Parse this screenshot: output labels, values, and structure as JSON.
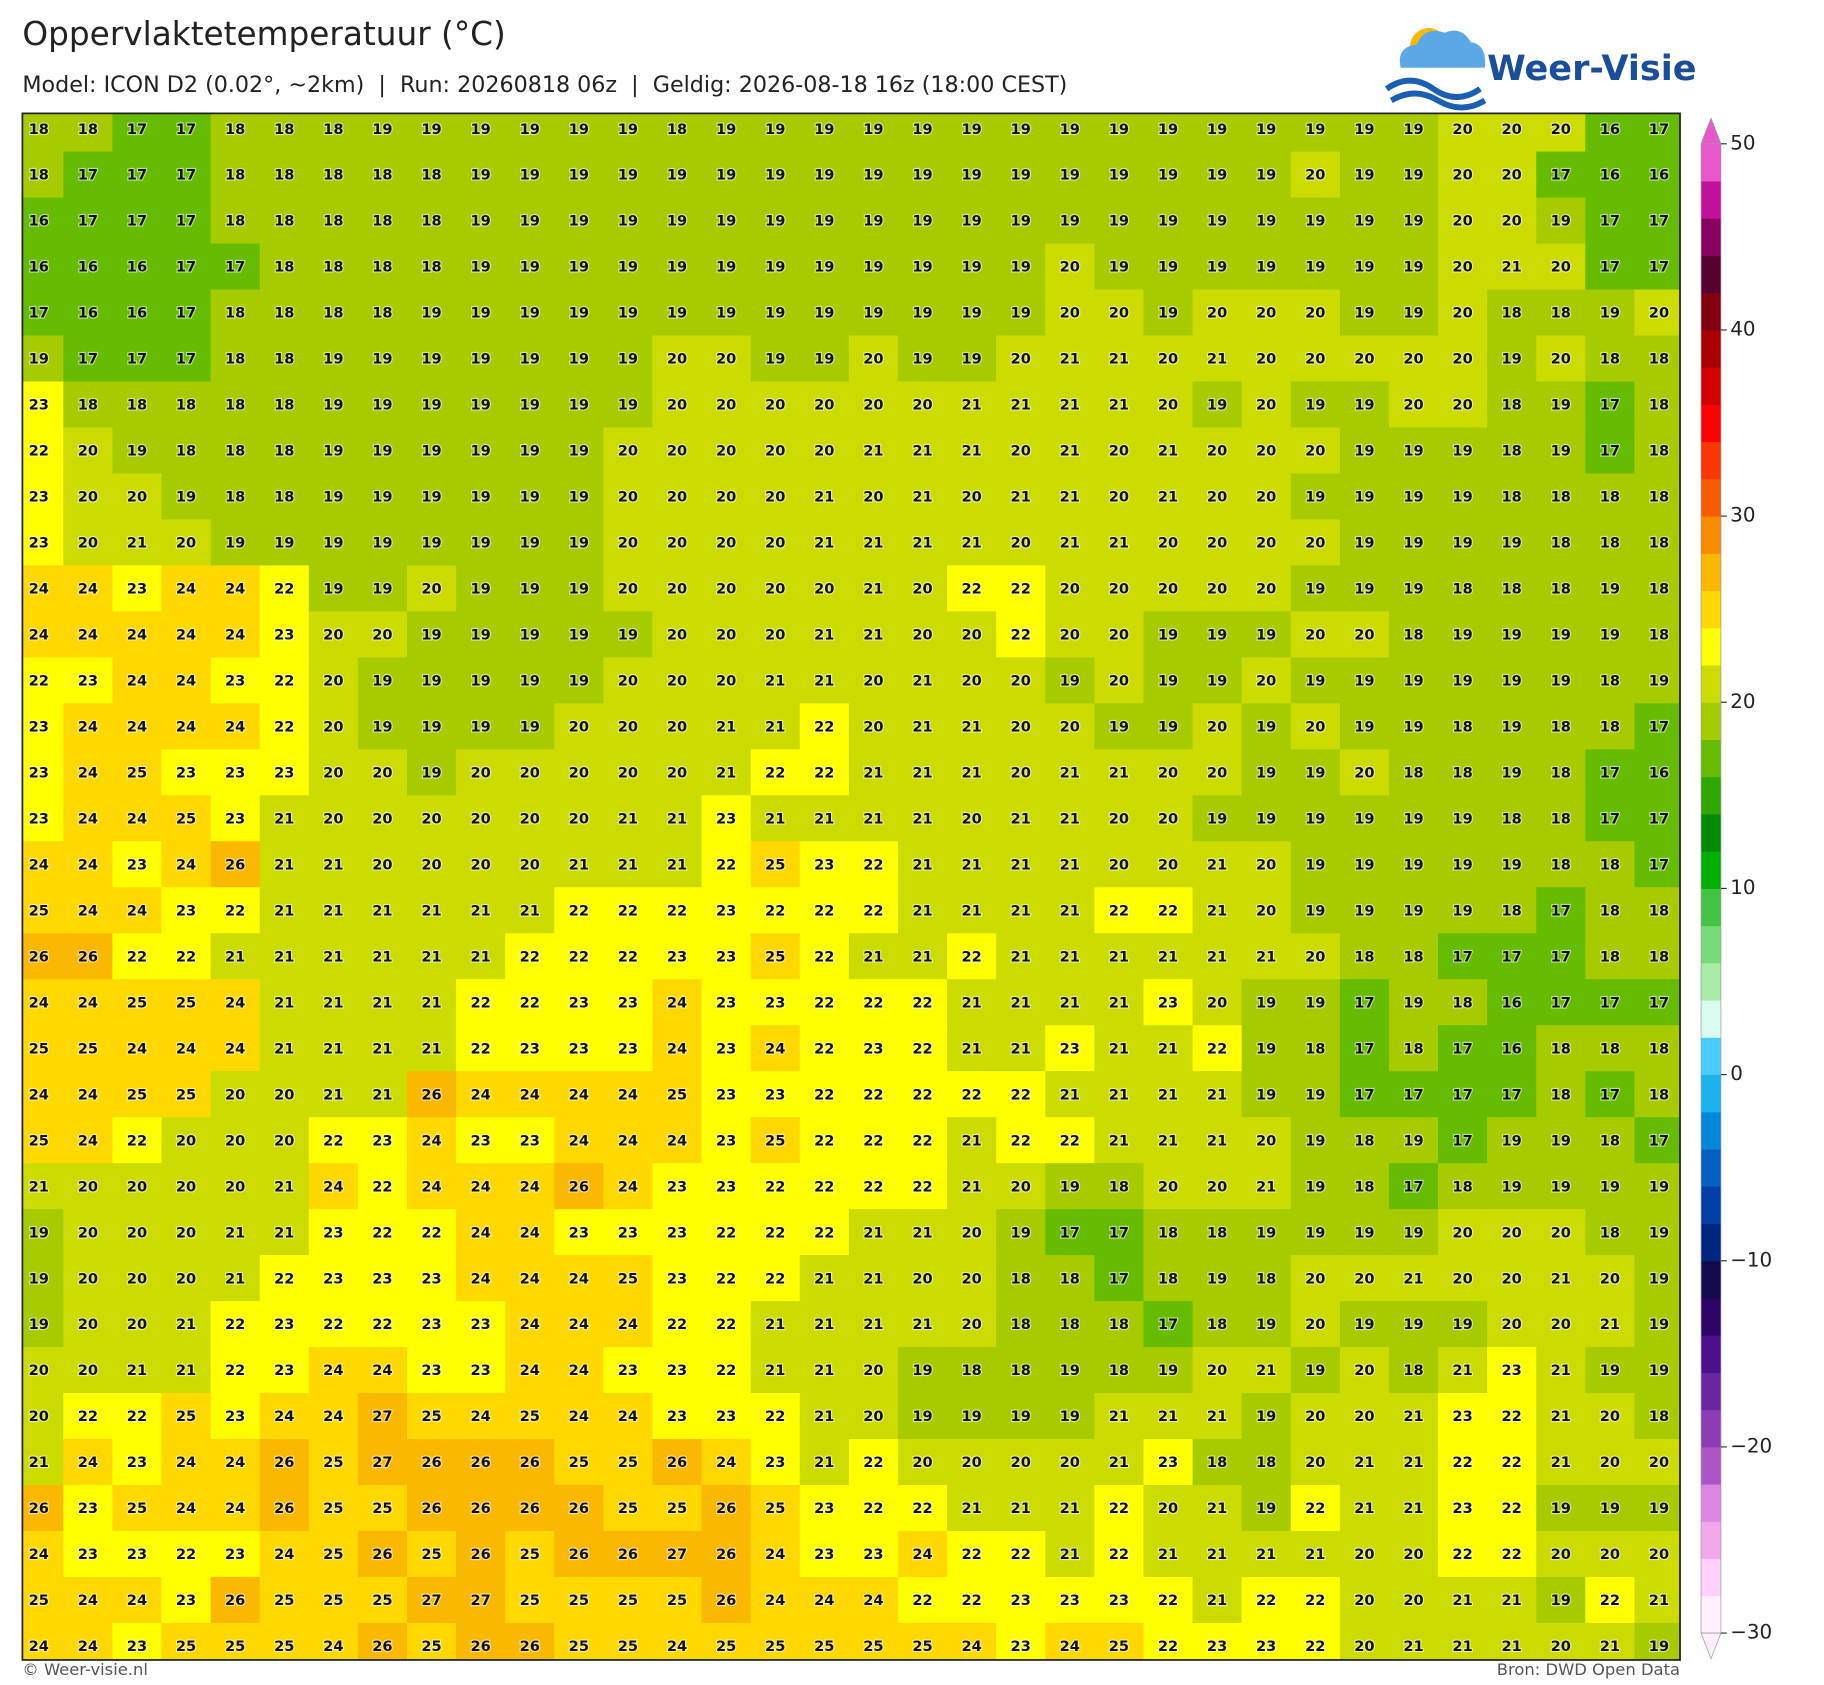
{
  "logo": "Weer-Visie",
  "chart_data": {
    "type": "heatmap",
    "title": "Oppervlaktetemperatuur (°C)",
    "subtitle": "Model: ICON D2 (0.02°, ~2km)  |  Run: 20260818 06z  |  Geldig: 2026-08-18 16z (18:00 CEST)",
    "credit": "© Weer-visie.nl",
    "source": "Bron: DWD Open Data",
    "values": [
      [
        18,
        18,
        17,
        17,
        18,
        18,
        18,
        19,
        19,
        19,
        19,
        19,
        19,
        18,
        19,
        19,
        19,
        19,
        19,
        19,
        19,
        19,
        19,
        19,
        19,
        19,
        19,
        19,
        19,
        20,
        20,
        20,
        16,
        17
      ],
      [
        18,
        17,
        17,
        17,
        18,
        18,
        18,
        18,
        18,
        19,
        19,
        19,
        19,
        19,
        19,
        19,
        19,
        19,
        19,
        19,
        19,
        19,
        19,
        19,
        19,
        19,
        20,
        19,
        19,
        20,
        20,
        17,
        16,
        16
      ],
      [
        16,
        17,
        17,
        17,
        18,
        18,
        18,
        18,
        18,
        19,
        19,
        19,
        19,
        19,
        19,
        19,
        19,
        19,
        19,
        19,
        19,
        19,
        19,
        19,
        19,
        19,
        19,
        19,
        19,
        20,
        20,
        19,
        17,
        17
      ],
      [
        16,
        16,
        16,
        17,
        17,
        18,
        18,
        18,
        18,
        19,
        19,
        19,
        19,
        19,
        19,
        19,
        19,
        19,
        19,
        19,
        19,
        20,
        19,
        19,
        19,
        19,
        19,
        19,
        19,
        20,
        21,
        20,
        17,
        17
      ],
      [
        17,
        16,
        16,
        17,
        18,
        18,
        18,
        18,
        19,
        19,
        19,
        19,
        19,
        19,
        19,
        19,
        19,
        19,
        19,
        19,
        19,
        20,
        20,
        19,
        20,
        20,
        20,
        19,
        19,
        20,
        18,
        18,
        19,
        20
      ],
      [
        19,
        17,
        17,
        17,
        18,
        18,
        19,
        19,
        19,
        19,
        19,
        19,
        19,
        20,
        20,
        19,
        19,
        20,
        19,
        19,
        20,
        21,
        21,
        20,
        21,
        20,
        20,
        20,
        20,
        20,
        19,
        20,
        18,
        18
      ],
      [
        23,
        18,
        18,
        18,
        18,
        18,
        19,
        19,
        19,
        19,
        19,
        19,
        19,
        20,
        20,
        20,
        20,
        20,
        20,
        21,
        21,
        21,
        21,
        20,
        19,
        20,
        19,
        19,
        20,
        20,
        18,
        19,
        17,
        18
      ],
      [
        22,
        20,
        19,
        18,
        18,
        18,
        19,
        19,
        19,
        19,
        19,
        19,
        20,
        20,
        20,
        20,
        20,
        21,
        21,
        21,
        20,
        21,
        20,
        21,
        20,
        20,
        20,
        19,
        19,
        19,
        18,
        19,
        17,
        18
      ],
      [
        23,
        20,
        20,
        19,
        18,
        18,
        19,
        19,
        19,
        19,
        19,
        19,
        20,
        20,
        20,
        20,
        21,
        20,
        21,
        20,
        21,
        21,
        20,
        21,
        20,
        20,
        19,
        19,
        19,
        19,
        18,
        18,
        18,
        18
      ],
      [
        23,
        20,
        21,
        20,
        19,
        19,
        19,
        19,
        19,
        19,
        19,
        19,
        20,
        20,
        20,
        20,
        21,
        21,
        21,
        21,
        20,
        21,
        21,
        20,
        20,
        20,
        20,
        19,
        19,
        19,
        19,
        18,
        18,
        18
      ],
      [
        24,
        24,
        23,
        24,
        24,
        22,
        19,
        19,
        20,
        19,
        19,
        19,
        20,
        20,
        20,
        20,
        20,
        21,
        20,
        22,
        22,
        20,
        20,
        20,
        20,
        20,
        19,
        19,
        19,
        18,
        18,
        18,
        19,
        18
      ],
      [
        24,
        24,
        24,
        24,
        24,
        23,
        20,
        20,
        19,
        19,
        19,
        19,
        19,
        20,
        20,
        20,
        21,
        21,
        20,
        20,
        22,
        20,
        20,
        19,
        19,
        19,
        20,
        20,
        18,
        19,
        19,
        19,
        19,
        18
      ],
      [
        22,
        23,
        24,
        24,
        23,
        22,
        20,
        19,
        19,
        19,
        19,
        19,
        20,
        20,
        20,
        21,
        21,
        20,
        21,
        20,
        20,
        19,
        20,
        19,
        19,
        20,
        19,
        19,
        19,
        19,
        19,
        19,
        18,
        19
      ],
      [
        23,
        24,
        24,
        24,
        24,
        22,
        20,
        19,
        19,
        19,
        19,
        20,
        20,
        20,
        21,
        21,
        22,
        20,
        21,
        21,
        20,
        20,
        19,
        19,
        20,
        19,
        20,
        19,
        19,
        18,
        19,
        18,
        18,
        17
      ],
      [
        23,
        24,
        25,
        23,
        23,
        23,
        20,
        20,
        19,
        20,
        20,
        20,
        20,
        20,
        21,
        22,
        22,
        21,
        21,
        21,
        20,
        21,
        21,
        20,
        20,
        19,
        19,
        20,
        18,
        18,
        19,
        18,
        17,
        16
      ],
      [
        23,
        24,
        24,
        25,
        23,
        21,
        20,
        20,
        20,
        20,
        20,
        20,
        21,
        21,
        23,
        21,
        21,
        21,
        21,
        20,
        21,
        21,
        20,
        20,
        19,
        19,
        19,
        19,
        19,
        19,
        18,
        18,
        17,
        17
      ],
      [
        24,
        24,
        23,
        24,
        26,
        21,
        21,
        20,
        20,
        20,
        20,
        21,
        21,
        21,
        22,
        25,
        23,
        22,
        21,
        21,
        21,
        21,
        20,
        20,
        21,
        20,
        19,
        19,
        19,
        19,
        19,
        18,
        18,
        17
      ],
      [
        25,
        24,
        24,
        23,
        22,
        21,
        21,
        21,
        21,
        21,
        21,
        22,
        22,
        22,
        23,
        22,
        22,
        22,
        21,
        21,
        21,
        21,
        22,
        22,
        21,
        20,
        19,
        19,
        19,
        19,
        18,
        17,
        18,
        18
      ],
      [
        26,
        26,
        22,
        22,
        21,
        21,
        21,
        21,
        21,
        21,
        22,
        22,
        22,
        23,
        23,
        25,
        22,
        21,
        21,
        22,
        21,
        21,
        21,
        21,
        21,
        21,
        20,
        18,
        18,
        17,
        17,
        17,
        18,
        18
      ],
      [
        24,
        24,
        25,
        25,
        24,
        21,
        21,
        21,
        21,
        22,
        22,
        23,
        23,
        24,
        23,
        23,
        22,
        22,
        22,
        21,
        21,
        21,
        21,
        23,
        20,
        19,
        19,
        17,
        19,
        18,
        16,
        17,
        17,
        17
      ],
      [
        25,
        25,
        24,
        24,
        24,
        21,
        21,
        21,
        21,
        22,
        23,
        23,
        23,
        24,
        23,
        24,
        22,
        23,
        22,
        21,
        21,
        23,
        21,
        21,
        22,
        19,
        18,
        17,
        18,
        17,
        16,
        18,
        18,
        18
      ],
      [
        24,
        24,
        25,
        25,
        20,
        20,
        21,
        21,
        26,
        24,
        24,
        24,
        24,
        25,
        23,
        23,
        22,
        22,
        22,
        22,
        22,
        21,
        21,
        21,
        21,
        19,
        19,
        17,
        17,
        17,
        17,
        18,
        17,
        18
      ],
      [
        25,
        24,
        22,
        20,
        20,
        20,
        22,
        23,
        24,
        23,
        23,
        24,
        24,
        24,
        23,
        25,
        22,
        22,
        22,
        21,
        22,
        22,
        21,
        21,
        21,
        20,
        19,
        18,
        19,
        17,
        19,
        19,
        18,
        17
      ],
      [
        21,
        20,
        20,
        20,
        20,
        21,
        24,
        22,
        24,
        24,
        24,
        26,
        24,
        23,
        23,
        22,
        22,
        22,
        22,
        21,
        20,
        19,
        18,
        20,
        20,
        21,
        19,
        18,
        17,
        18,
        19,
        19,
        19,
        19
      ],
      [
        19,
        20,
        20,
        20,
        21,
        21,
        23,
        22,
        22,
        24,
        24,
        23,
        23,
        23,
        22,
        22,
        22,
        21,
        21,
        20,
        19,
        17,
        17,
        18,
        18,
        19,
        19,
        19,
        19,
        20,
        20,
        20,
        18,
        19
      ],
      [
        19,
        20,
        20,
        20,
        21,
        22,
        23,
        23,
        23,
        24,
        24,
        24,
        25,
        23,
        22,
        22,
        21,
        21,
        20,
        20,
        18,
        18,
        17,
        18,
        19,
        18,
        20,
        20,
        21,
        20,
        20,
        21,
        20,
        19
      ],
      [
        19,
        20,
        20,
        21,
        22,
        23,
        22,
        22,
        23,
        23,
        24,
        24,
        24,
        22,
        22,
        21,
        21,
        21,
        21,
        20,
        18,
        18,
        18,
        17,
        18,
        19,
        20,
        19,
        19,
        19,
        20,
        20,
        21,
        19
      ],
      [
        20,
        20,
        21,
        21,
        22,
        23,
        24,
        24,
        23,
        23,
        24,
        24,
        23,
        23,
        22,
        21,
        21,
        20,
        19,
        18,
        18,
        19,
        18,
        19,
        20,
        21,
        19,
        20,
        18,
        21,
        23,
        21,
        19,
        19
      ],
      [
        20,
        22,
        22,
        25,
        23,
        24,
        24,
        27,
        25,
        24,
        25,
        24,
        24,
        23,
        23,
        22,
        21,
        20,
        19,
        19,
        19,
        19,
        21,
        21,
        21,
        19,
        20,
        20,
        21,
        23,
        22,
        21,
        20,
        18
      ],
      [
        21,
        24,
        23,
        24,
        24,
        26,
        25,
        27,
        26,
        26,
        26,
        25,
        25,
        26,
        24,
        23,
        21,
        22,
        20,
        20,
        20,
        20,
        21,
        23,
        18,
        18,
        20,
        21,
        21,
        22,
        22,
        21,
        20,
        20
      ],
      [
        26,
        23,
        25,
        24,
        24,
        26,
        25,
        25,
        26,
        26,
        26,
        26,
        25,
        25,
        26,
        25,
        23,
        22,
        22,
        21,
        21,
        21,
        22,
        20,
        21,
        19,
        22,
        21,
        21,
        23,
        22,
        19,
        19,
        19
      ],
      [
        24,
        23,
        23,
        22,
        23,
        24,
        25,
        26,
        25,
        26,
        25,
        26,
        26,
        27,
        26,
        24,
        23,
        23,
        24,
        22,
        22,
        21,
        22,
        21,
        21,
        21,
        21,
        20,
        20,
        22,
        22,
        20,
        20,
        20
      ],
      [
        25,
        24,
        24,
        23,
        26,
        25,
        25,
        25,
        27,
        27,
        25,
        25,
        25,
        25,
        26,
        24,
        24,
        24,
        22,
        22,
        23,
        23,
        23,
        22,
        21,
        22,
        22,
        20,
        20,
        21,
        21,
        19,
        22,
        21
      ],
      [
        24,
        24,
        23,
        25,
        25,
        25,
        24,
        26,
        25,
        26,
        26,
        25,
        25,
        24,
        25,
        25,
        25,
        25,
        25,
        24,
        23,
        24,
        25,
        22,
        23,
        23,
        22,
        20,
        21,
        21,
        21,
        20,
        21,
        19
      ]
    ],
    "colorbar": {
      "lim": [
        -30,
        50
      ],
      "ticks": [
        {
          "value": -30,
          "label": "−30"
        },
        {
          "value": -20,
          "label": "−20"
        },
        {
          "value": -10,
          "label": "−10"
        },
        0,
        10,
        20,
        30,
        40,
        50
      ],
      "colors": [
        "#ffeefe",
        "#ffd0fa",
        "#f4a8ec",
        "#dc86e2",
        "#ad55c6",
        "#8c3db4",
        "#6a25a0",
        "#4c108c",
        "#2e0466",
        "#120a4a",
        "#002680",
        "#0040a4",
        "#0060c0",
        "#0088d8",
        "#1ab4ee",
        "#48ccff",
        "#d8fcf0",
        "#a8eca8",
        "#78da78",
        "#44c444",
        "#00b000",
        "#008c00",
        "#30a800",
        "#66bc00",
        "#a6cc00",
        "#ccdc00",
        "#ffff00",
        "#ffd800",
        "#fbb800",
        "#f88c00",
        "#f85c00",
        "#f83800",
        "#ff0000",
        "#d40000",
        "#a80000",
        "#800010",
        "#560030",
        "#8a0060",
        "#c0109c",
        "#e858cc"
      ]
    }
  }
}
